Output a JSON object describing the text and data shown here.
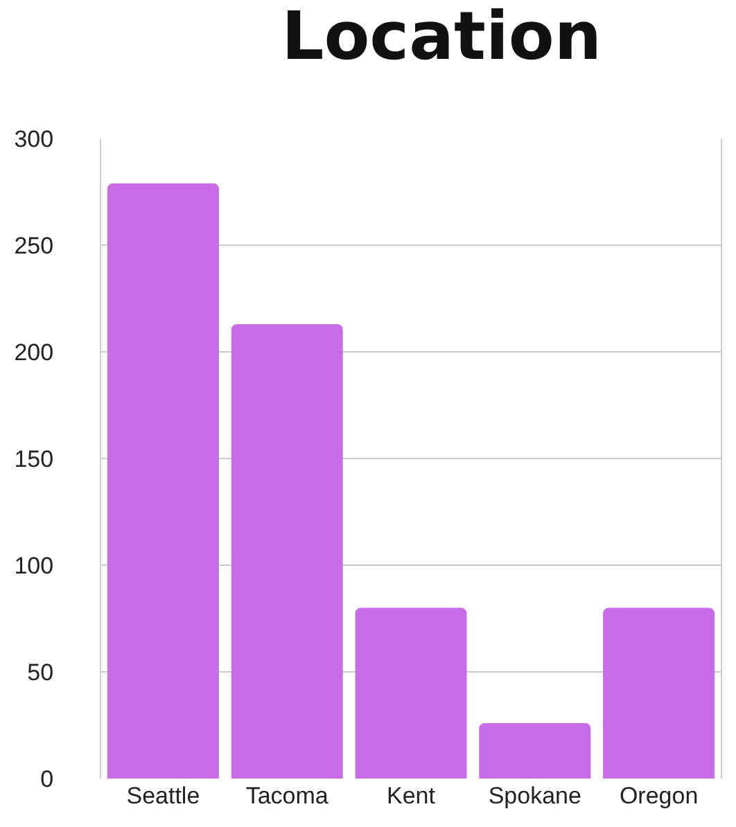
{
  "chart_data": {
    "type": "bar",
    "title": "Location",
    "categories": [
      "Seattle",
      "Tacoma",
      "Kent",
      "Spokane",
      "Oregon"
    ],
    "values": [
      279,
      213,
      80,
      26,
      80
    ],
    "color": "#c96ae6",
    "ylim": [
      0,
      300
    ],
    "yticks": [
      0,
      50,
      100,
      150,
      200,
      250,
      300
    ],
    "grid": "y"
  }
}
